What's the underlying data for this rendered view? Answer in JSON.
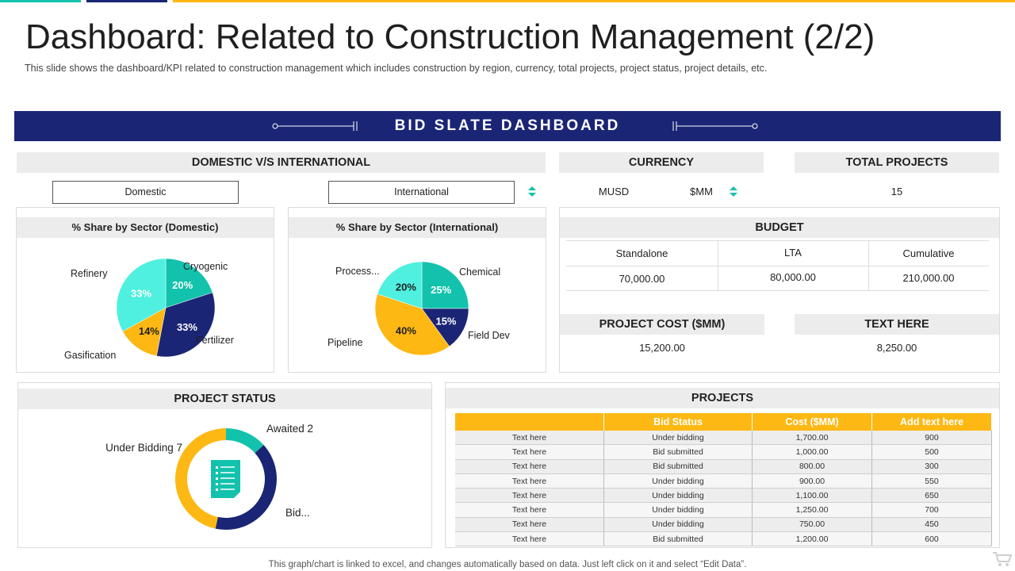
{
  "title": "Dashboard: Related to Construction Management (2/2)",
  "subtitle": "This slide shows the dashboard/KPI related to construction management which includes construction by region, currency, total projects, project status, project details, etc.",
  "banner": "BID SLATE DASHBOARD",
  "colors": {
    "navy": "#1b2575",
    "teal": "#12c2ac",
    "aqua": "#4ff0df",
    "gold": "#fdb813",
    "gray": "#ececec"
  },
  "domestic_intl": {
    "header": "DOMESTIC V/S INTERNATIONAL",
    "domestic_label": "Domestic",
    "international_label": "International"
  },
  "currency": {
    "header": "CURRENCY",
    "option1": "MUSD",
    "option2": "$MM"
  },
  "total_projects": {
    "header": "TOTAL PROJECTS",
    "value": "15"
  },
  "budget": {
    "header": "BUDGET",
    "columns": [
      "Standalone",
      "LTA",
      "Cumulative"
    ],
    "values": [
      "70,000.00",
      "80,000.00",
      "210,000.00"
    ]
  },
  "project_cost": {
    "header": "PROJECT COST ($MM)",
    "value": "15,200.00"
  },
  "text_here": {
    "header": "TEXT HERE",
    "value": "8,250.00"
  },
  "domestic_pie": {
    "header": "% Share by Sector (Domestic)",
    "labels": [
      "Cryogenic",
      "Fertilizer",
      "Gasification",
      "Refinery"
    ],
    "pcts": [
      "20%",
      "33%",
      "14%",
      "33%"
    ]
  },
  "intl_pie": {
    "header": "% Share by Sector (International)",
    "labels": [
      "Chemical",
      "Field Dev",
      "Pipeline",
      "Process..."
    ],
    "pcts": [
      "25%",
      "15%",
      "40%",
      "20%"
    ]
  },
  "project_status": {
    "header": "PROJECT STATUS",
    "labels": [
      "Awaited 2",
      "Bid...",
      "Under Bidding 7"
    ]
  },
  "projects": {
    "header": "PROJECTS",
    "columns": [
      "",
      "Bid Status",
      "Cost ($MM)",
      "Add text here"
    ],
    "rows": [
      [
        "Text here",
        "Under bidding",
        "1,700.00",
        "900"
      ],
      [
        "Text here",
        "Bid submitted",
        "1,000.00",
        "500"
      ],
      [
        "Text here",
        "Bid submitted",
        "800.00",
        "300"
      ],
      [
        "Text here",
        "Under bidding",
        "900.00",
        "550"
      ],
      [
        "Text here",
        "Under bidding",
        "1,100.00",
        "650"
      ],
      [
        "Text here",
        "Under bidding",
        "1,250.00",
        "700"
      ],
      [
        "Text here",
        "Under bidding",
        "750.00",
        "450"
      ],
      [
        "Text here",
        "Bid submitted",
        "1,200.00",
        "600"
      ]
    ]
  },
  "footnote": "This graph/chart is linked to excel, and changes automatically based on data. Just left click on it and select “Edit Data”.",
  "chart_data": [
    {
      "type": "pie",
      "title": "% Share by Sector (Domestic)",
      "categories": [
        "Cryogenic",
        "Fertilizer",
        "Gasification",
        "Refinery"
      ],
      "values": [
        20,
        33,
        14,
        33
      ]
    },
    {
      "type": "pie",
      "title": "% Share by Sector (International)",
      "categories": [
        "Chemical",
        "Field Dev",
        "Pipeline",
        "Process..."
      ],
      "values": [
        25,
        15,
        40,
        20
      ]
    },
    {
      "type": "pie",
      "title": "PROJECT STATUS",
      "categories": [
        "Awaited",
        "Bid...",
        "Under Bidding"
      ],
      "values": [
        2,
        6,
        7
      ]
    }
  ]
}
